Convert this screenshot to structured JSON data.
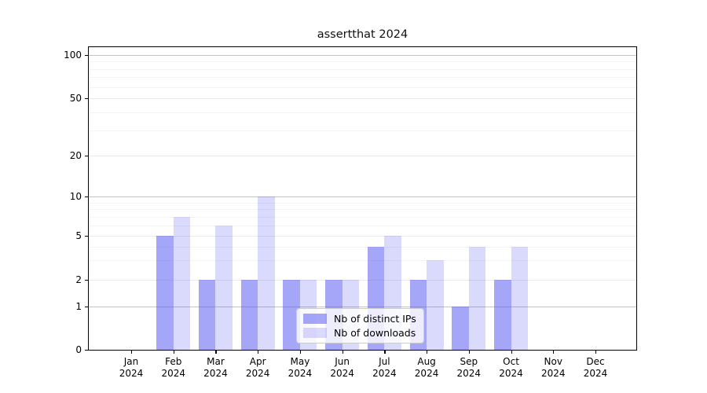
{
  "title": "assertthat 2024",
  "chart_data": {
    "type": "bar",
    "title": "assertthat 2024",
    "year": "2024",
    "categories": [
      "Jan",
      "Feb",
      "Mar",
      "Apr",
      "May",
      "Jun",
      "Jul",
      "Aug",
      "Sep",
      "Oct",
      "Nov",
      "Dec"
    ],
    "series": [
      {
        "name": "Nb of distinct IPs",
        "color": "#aaaaf7",
        "fill": "rgba(85,85,243,0.52)",
        "values": [
          0,
          5,
          2,
          2,
          2,
          2,
          4,
          2,
          1,
          2,
          0,
          0
        ]
      },
      {
        "name": "Nb of downloads",
        "color": "#dcdcf9",
        "fill": "rgba(85,85,243,0.22)",
        "values": [
          0,
          7,
          6,
          10,
          2,
          2,
          5,
          3,
          4,
          4,
          0,
          0
        ]
      }
    ],
    "yscale": "symlog",
    "yticks": [
      0,
      1,
      2,
      5,
      10,
      20,
      50,
      100
    ],
    "ylim": [
      0,
      113
    ],
    "xlabel": "",
    "ylabel": "",
    "grid": true,
    "legend_position": "lower center",
    "grid_colors": {
      "major": "#c2c2c2",
      "mid": "#e9e9e9",
      "minor": "#f3f3f3"
    }
  }
}
